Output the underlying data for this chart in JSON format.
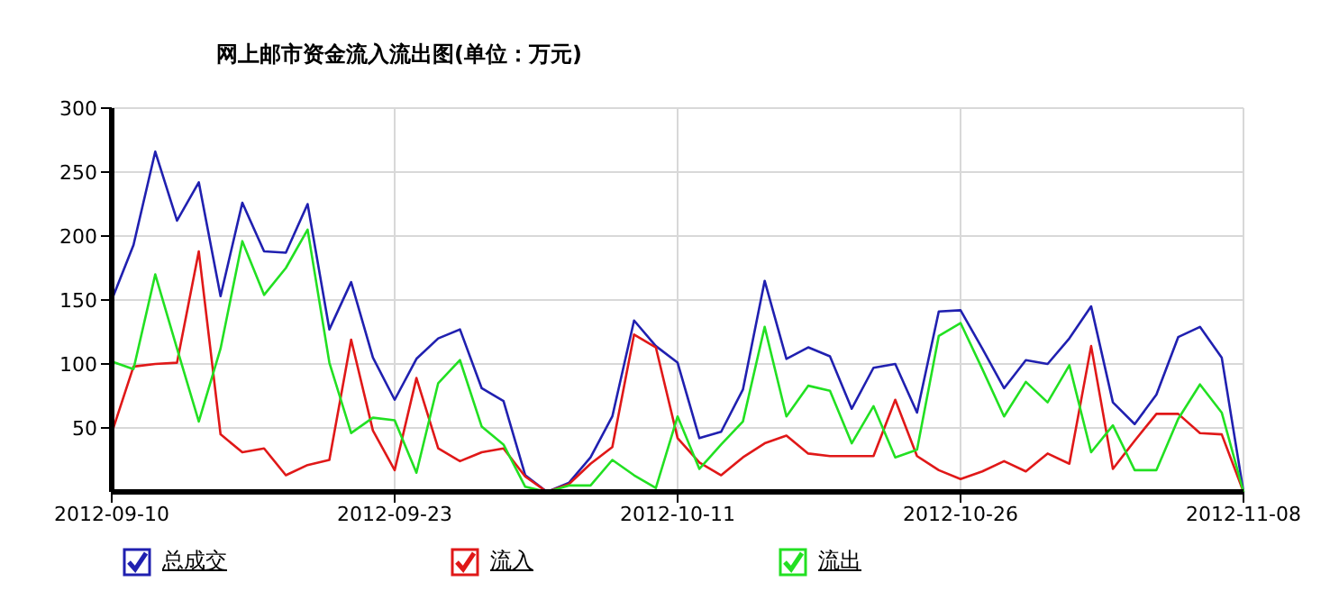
{
  "chart_data": {
    "type": "line",
    "title": "网上邮市资金流入流出图(单位：万元)",
    "categories": [
      "2012-09-10",
      null,
      null,
      null,
      null,
      null,
      null,
      null,
      null,
      null,
      null,
      null,
      null,
      "2012-09-23",
      null,
      null,
      null,
      null,
      null,
      null,
      null,
      null,
      null,
      null,
      null,
      null,
      "2012-10-11",
      null,
      null,
      null,
      null,
      null,
      null,
      null,
      null,
      null,
      null,
      null,
      null,
      "2012-10-26",
      null,
      null,
      null,
      null,
      null,
      null,
      null,
      null,
      null,
      null,
      null,
      null,
      "2012-11-08"
    ],
    "series": [
      {
        "name": "总成交",
        "color": "#2020b0",
        "values": [
          150,
          193,
          266,
          212,
          242,
          153,
          226,
          188,
          187,
          225,
          127,
          164,
          105,
          72,
          104,
          120,
          127,
          81,
          71,
          13,
          0,
          7,
          27,
          59,
          134,
          114,
          101,
          42,
          47,
          80,
          165,
          104,
          113,
          106,
          65,
          97,
          100,
          62,
          141,
          142,
          112,
          81,
          103,
          100,
          120,
          145,
          70,
          53,
          76,
          121,
          129,
          105,
          0
        ]
      },
      {
        "name": "流入",
        "color": "#e01818",
        "values": [
          46,
          98,
          100,
          101,
          188,
          45,
          31,
          34,
          13,
          21,
          25,
          119,
          48,
          17,
          89,
          34,
          24,
          31,
          34,
          12,
          0,
          6,
          22,
          35,
          123,
          113,
          42,
          23,
          13,
          27,
          38,
          44,
          30,
          28,
          28,
          28,
          72,
          28,
          17,
          10,
          16,
          24,
          16,
          30,
          22,
          114,
          18,
          40,
          61,
          61,
          46,
          45,
          0
        ]
      },
      {
        "name": "流出",
        "color": "#22e022",
        "values": [
          102,
          96,
          170,
          112,
          55,
          112,
          196,
          154,
          175,
          205,
          101,
          46,
          58,
          56,
          15,
          85,
          103,
          51,
          37,
          4,
          0,
          5,
          5,
          25,
          13,
          3,
          59,
          18,
          37,
          55,
          129,
          59,
          83,
          79,
          38,
          67,
          27,
          33,
          122,
          132,
          96,
          59,
          86,
          70,
          99,
          31,
          52,
          17,
          17,
          57,
          84,
          62,
          0
        ]
      }
    ],
    "ylim": [
      0,
      300
    ],
    "yticks": [
      50,
      100,
      150,
      200,
      250,
      300
    ],
    "grid": true,
    "legend": "bottom",
    "marker": "none",
    "line_style": "solid"
  }
}
